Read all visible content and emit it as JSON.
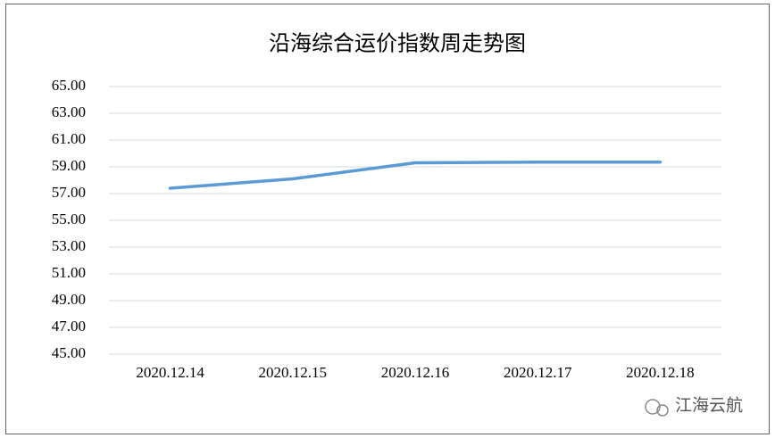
{
  "chart_data": {
    "type": "line",
    "title": "沿海综合运价指数周走势图",
    "categories": [
      "2020.12.14",
      "2020.12.15",
      "2020.12.16",
      "2020.12.17",
      "2020.12.18"
    ],
    "series": [
      {
        "name": "沿海综合运价指数",
        "color": "#5b9bd5",
        "values": [
          57.4,
          58.1,
          59.3,
          59.35,
          59.35
        ]
      }
    ],
    "ylim": [
      45,
      65
    ],
    "yticks": [
      {
        "value": 45,
        "label": "45.00"
      },
      {
        "value": 47,
        "label": "47.00"
      },
      {
        "value": 49,
        "label": "49.00"
      },
      {
        "value": 51,
        "label": "51.00"
      },
      {
        "value": 53,
        "label": "53.00"
      },
      {
        "value": 55,
        "label": "55.00"
      },
      {
        "value": 57,
        "label": "57.00"
      },
      {
        "value": 59,
        "label": "59.00"
      },
      {
        "value": 61,
        "label": "61.00"
      },
      {
        "value": 63,
        "label": "63.00"
      },
      {
        "value": 65,
        "label": "65.00"
      }
    ],
    "grid": true,
    "watermark": "江海云航"
  }
}
